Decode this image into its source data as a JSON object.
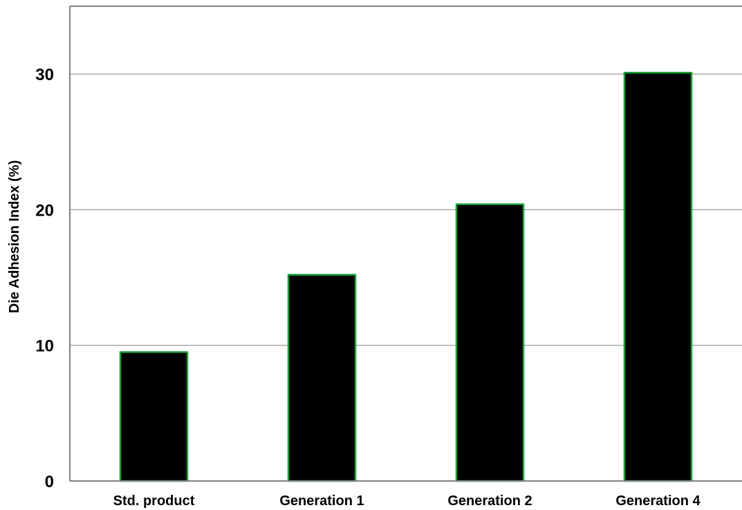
{
  "chart_data": {
    "type": "bar",
    "title": "",
    "xlabel": "",
    "ylabel": "Die Adhesion Index (%)",
    "categories": [
      "Std. product",
      "Generation 1",
      "Generation 2",
      "Generation 4"
    ],
    "values": [
      9.5,
      15.2,
      20.4,
      30.1
    ],
    "ylim": [
      0,
      35
    ],
    "yticks": [
      0,
      10,
      20,
      30
    ],
    "grid": true,
    "legend": "none",
    "colors": {
      "bar_fill": "#000000",
      "bar_stroke": "#1a9e3c",
      "grid": "#808080",
      "axis": "#808080"
    }
  }
}
